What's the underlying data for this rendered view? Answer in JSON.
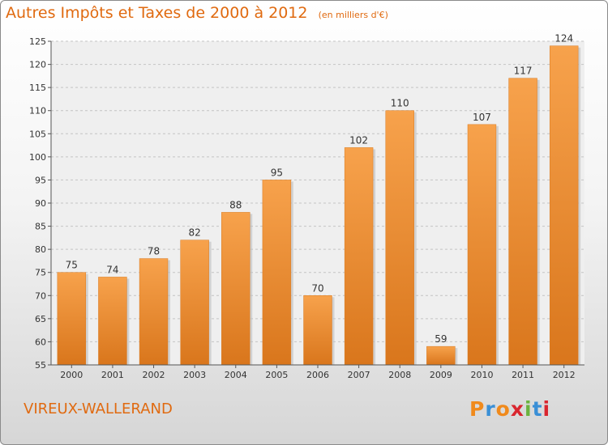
{
  "header": {
    "title": "Autres Impôts et Taxes de 2000 à 2012",
    "subtitle": "(en milliers d'€)"
  },
  "footer": {
    "commune": "VIREUX-WALLERAND",
    "logo_text": "Proxiti",
    "logo_colors": [
      "#f08a1c",
      "#3a8fd6",
      "#f08a1c",
      "#d9262f",
      "#6cb33f",
      "#3a8fd6",
      "#d9262f"
    ]
  },
  "chart_data": {
    "type": "bar",
    "categories": [
      "2000",
      "2001",
      "2002",
      "2003",
      "2004",
      "2005",
      "2006",
      "2007",
      "2008",
      "2009",
      "2010",
      "2011",
      "2012"
    ],
    "values": [
      75,
      74,
      78,
      82,
      88,
      95,
      70,
      102,
      110,
      59,
      107,
      117,
      124
    ],
    "ylim": [
      55,
      125
    ],
    "yticks": [
      55,
      60,
      65,
      70,
      75,
      80,
      85,
      90,
      95,
      100,
      105,
      110,
      115,
      120,
      125
    ],
    "grid": true,
    "bar_color": "#f0962e"
  }
}
